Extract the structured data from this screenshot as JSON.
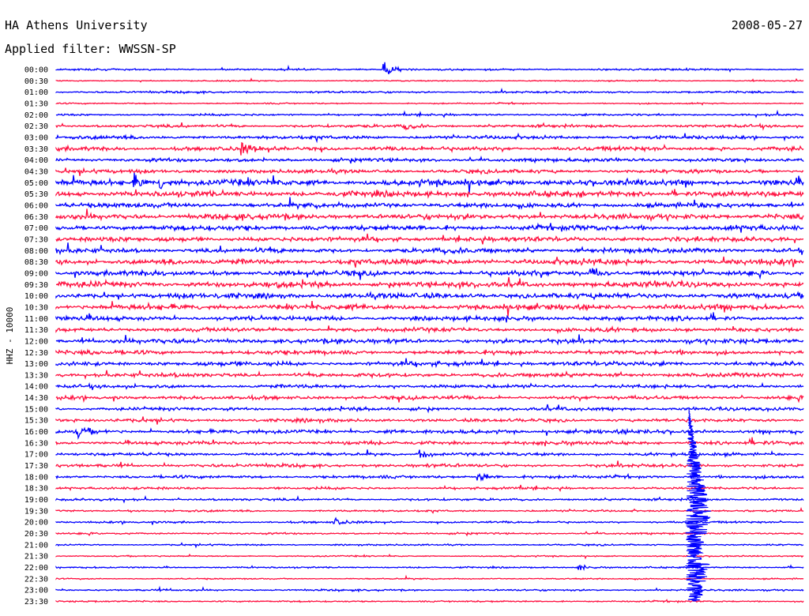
{
  "header": {
    "station": "HA Athens University",
    "date": "2008-05-27",
    "filter": "Applied filter: WWSSN-SP"
  },
  "chart_data": {
    "type": "line",
    "title": "HA Athens University",
    "ylabel": "HHZ - 10000",
    "row_labels": [
      "00:00",
      "00:30",
      "01:00",
      "01:30",
      "02:00",
      "02:30",
      "03:00",
      "03:30",
      "04:00",
      "04:30",
      "05:00",
      "05:30",
      "06:00",
      "06:30",
      "07:00",
      "07:30",
      "08:00",
      "08:30",
      "09:00",
      "09:30",
      "10:00",
      "10:30",
      "11:00",
      "11:30",
      "12:00",
      "12:30",
      "13:00",
      "13:30",
      "14:00",
      "14:30",
      "15:00",
      "15:30",
      "16:00",
      "16:30",
      "17:00",
      "17:30",
      "18:00",
      "18:30",
      "19:00",
      "19:30",
      "20:00",
      "20:30",
      "21:00",
      "21:30",
      "22:00",
      "22:30",
      "23:00",
      "23:30"
    ],
    "row_colors": [
      "#0000ff",
      "#ff1040"
    ],
    "row_activity": [
      0.8,
      0.5,
      0.9,
      0.6,
      0.9,
      1.3,
      1.6,
      1.9,
      1.6,
      1.7,
      2.8,
      2.6,
      2.2,
      2.5,
      2.4,
      2.2,
      2.1,
      2.6,
      2.3,
      2.6,
      2.4,
      2.5,
      2.0,
      1.9,
      2.1,
      1.9,
      2.0,
      1.8,
      1.6,
      1.7,
      1.5,
      1.5,
      1.8,
      1.6,
      1.4,
      1.5,
      1.3,
      1.1,
      1.0,
      0.9,
      0.9,
      0.8,
      0.7,
      0.6,
      0.7,
      0.6,
      0.8,
      0.7
    ],
    "events": [
      {
        "row": 0,
        "time_min": 13.2,
        "amp": 9
      },
      {
        "row": 36,
        "time_min": 17.0,
        "amp": 6
      },
      {
        "row": 40,
        "time_min": 11.2,
        "amp": 4
      },
      {
        "row": 44,
        "time_min": 21.0,
        "amp": 3
      },
      {
        "row": 5,
        "time_min": 14.0,
        "amp": 4
      },
      {
        "row": 7,
        "time_min": 7.5,
        "amp": 5
      },
      {
        "row": 10,
        "time_min": 3.2,
        "amp": 7
      },
      {
        "row": 10,
        "time_min": 4.2,
        "amp": 6
      },
      {
        "row": 18,
        "time_min": 21.5,
        "amp": 5
      },
      {
        "row": 34,
        "time_min": 14.6,
        "amp": 6
      },
      {
        "row": 32,
        "time_min": 0.9,
        "amp": 5
      }
    ],
    "major_event": {
      "start_row": 30,
      "time_min": 25.4,
      "peak_amplitude_rows": 12
    },
    "xlim_minutes": [
      0,
      30
    ],
    "grid": false
  }
}
